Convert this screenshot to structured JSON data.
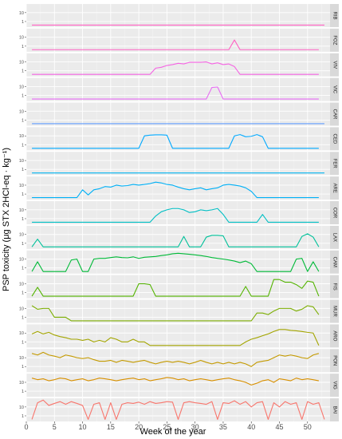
{
  "chart_data": {
    "type": "line",
    "facet": "rows",
    "xlabel": "Week of the year",
    "ylabel": "PSP toxicity (μg STX 2HCl-eq · kg⁻¹)",
    "xlim": [
      0,
      54
    ],
    "x_ticks": [
      0,
      5,
      10,
      15,
      20,
      25,
      30,
      35,
      40,
      45,
      50
    ],
    "y_scale": "log",
    "y_tick_labels": [
      "1",
      "10"
    ],
    "y_ticks": [
      1,
      10
    ],
    "y_min": 0.3,
    "y_max": 60,
    "grid": true,
    "series": [
      {
        "name": "RIB",
        "color": "#FF61C3",
        "x": [
          1,
          53
        ],
        "y": [
          0.4,
          0.4
        ]
      },
      {
        "name": "FOZ",
        "color": "#FF61C3",
        "x": [
          1,
          36,
          37,
          38,
          52
        ],
        "y": [
          0.4,
          0.4,
          5,
          0.4,
          0.4
        ]
      },
      {
        "name": "VIV",
        "color": "#F564E3",
        "x": [
          1,
          22,
          23,
          24,
          25,
          26,
          27,
          28,
          29,
          30,
          31,
          32,
          33,
          34,
          35,
          36,
          37,
          38,
          52
        ],
        "y": [
          0.4,
          0.4,
          2,
          2.5,
          4,
          5,
          7,
          6,
          9,
          9,
          9,
          10,
          6,
          8,
          5,
          6,
          3,
          0.4,
          0.4
        ]
      },
      {
        "name": "VIC",
        "color": "#E76BF3",
        "x": [
          1,
          32,
          33,
          34,
          35,
          52
        ],
        "y": [
          0.4,
          0.4,
          8,
          9,
          0.4,
          0.4
        ]
      },
      {
        "name": "CAR",
        "color": "#619CFF",
        "x": [
          1,
          53
        ],
        "y": [
          0.4,
          0.4
        ]
      },
      {
        "name": "CED",
        "color": "#00A9FF",
        "x": [
          1,
          20,
          21,
          22,
          23,
          24,
          25,
          26,
          36,
          37,
          38,
          39,
          40,
          41,
          42,
          43,
          52
        ],
        "y": [
          0.4,
          0.4,
          10,
          12,
          13,
          13,
          12,
          0.4,
          0.4,
          10,
          14,
          8,
          9,
          14,
          8,
          0.4,
          0.4
        ]
      },
      {
        "name": "FER",
        "color": "#00B4F0",
        "x": [
          1,
          53
        ],
        "y": [
          0.4,
          0.4
        ]
      },
      {
        "name": "ARE",
        "color": "#00B0F6",
        "x": [
          1,
          9,
          10,
          11,
          12,
          13,
          14,
          15,
          16,
          17,
          18,
          19,
          20,
          21,
          22,
          23,
          24,
          25,
          26,
          27,
          28,
          29,
          30,
          31,
          32,
          33,
          34,
          35,
          36,
          37,
          38,
          39,
          40,
          41,
          52
        ],
        "y": [
          0.4,
          0.4,
          3,
          0.8,
          3,
          4,
          7,
          6,
          10,
          8,
          9,
          12,
          10,
          12,
          15,
          22,
          18,
          12,
          10,
          6,
          4,
          3,
          4,
          5,
          3,
          4,
          5,
          10,
          12,
          10,
          8,
          5,
          2,
          0.4,
          0.4
        ]
      },
      {
        "name": "COR",
        "color": "#00BFC4",
        "x": [
          1,
          22,
          23,
          24,
          25,
          26,
          27,
          28,
          29,
          30,
          31,
          32,
          33,
          34,
          35,
          36,
          41,
          42,
          43,
          52
        ],
        "y": [
          0.4,
          0.4,
          2,
          6,
          10,
          14,
          14,
          10,
          5,
          6,
          10,
          8,
          10,
          14,
          3,
          0.4,
          0.4,
          3,
          0.4,
          0.4
        ]
      },
      {
        "name": "LAX",
        "color": "#00C19A",
        "x": [
          1,
          2,
          3,
          27,
          28,
          29,
          31,
          32,
          33,
          34,
          35,
          36,
          48,
          49,
          50,
          51,
          52
        ],
        "y": [
          0.4,
          3,
          0.4,
          0.4,
          6,
          0.4,
          0.4,
          5,
          8,
          8,
          7,
          0.4,
          0.4,
          6,
          12,
          5,
          0.4
        ]
      },
      {
        "name": "CAM",
        "color": "#00BA38",
        "x": [
          1,
          2,
          3,
          7,
          8,
          9,
          10,
          11,
          12,
          13,
          14,
          15,
          16,
          17,
          18,
          19,
          20,
          21,
          22,
          23,
          24,
          25,
          26,
          27,
          28,
          29,
          30,
          31,
          32,
          33,
          34,
          35,
          36,
          37,
          38,
          39,
          40,
          41,
          42,
          47,
          48,
          49,
          50,
          51,
          52
        ],
        "y": [
          0.4,
          5,
          0.4,
          0.4,
          8,
          10,
          0.4,
          0.4,
          10,
          12,
          12,
          15,
          18,
          15,
          14,
          18,
          12,
          16,
          18,
          20,
          25,
          30,
          40,
          45,
          40,
          35,
          30,
          25,
          20,
          15,
          12,
          10,
          8,
          6,
          4,
          6,
          3,
          0.4,
          0.4,
          0.4,
          10,
          12,
          0.4,
          5,
          0.4
        ]
      },
      {
        "name": "FIS",
        "color": "#53B400",
        "x": [
          1,
          2,
          3,
          19,
          20,
          21,
          22,
          23,
          38,
          39,
          40,
          43,
          44,
          45,
          46,
          47,
          48,
          49,
          50,
          51,
          52
        ],
        "y": [
          0.4,
          4,
          0.4,
          0.4,
          10,
          10,
          8,
          0.4,
          0.4,
          5,
          0.4,
          0.4,
          30,
          30,
          15,
          15,
          8,
          3,
          20,
          15,
          0.4
        ]
      },
      {
        "name": "MUR",
        "color": "#7CAE00",
        "x": [
          1,
          2,
          3,
          4,
          5,
          6,
          7,
          8,
          40,
          41,
          42,
          43,
          44,
          45,
          46,
          47,
          48,
          49,
          50,
          51,
          52
        ],
        "y": [
          20,
          8,
          10,
          10,
          1,
          1,
          1,
          0.4,
          0.4,
          3,
          3,
          2,
          5,
          10,
          10,
          10,
          5,
          8,
          20,
          15,
          2
        ]
      },
      {
        "name": "ARO",
        "color": "#A3A500",
        "x": [
          1,
          2,
          3,
          4,
          5,
          6,
          7,
          8,
          9,
          10,
          11,
          12,
          13,
          14,
          15,
          16,
          17,
          18,
          19,
          20,
          21,
          22,
          23,
          24,
          38,
          39,
          40,
          41,
          42,
          43,
          44,
          45,
          46,
          47,
          48,
          49,
          50,
          51,
          52
        ],
        "y": [
          8,
          15,
          8,
          12,
          6,
          4,
          3,
          2,
          2,
          1.5,
          2,
          1,
          1.5,
          1,
          3,
          2,
          1,
          1,
          2,
          1,
          1,
          0.4,
          0.4,
          0.4,
          0.4,
          1,
          2,
          3,
          5,
          8,
          15,
          25,
          25,
          20,
          18,
          15,
          12,
          10,
          0.4
        ]
      },
      {
        "name": "PON",
        "color": "#C49A00",
        "x": [
          1,
          2,
          3,
          4,
          5,
          6,
          7,
          8,
          9,
          10,
          11,
          12,
          13,
          14,
          15,
          16,
          17,
          18,
          19,
          20,
          21,
          22,
          23,
          24,
          25,
          26,
          27,
          28,
          29,
          30,
          31,
          32,
          33,
          34,
          35,
          36,
          37,
          38,
          39,
          40,
          41,
          42,
          43,
          44,
          45,
          46,
          47,
          48,
          49,
          50,
          51,
          52
        ],
        "y": [
          30,
          20,
          40,
          20,
          15,
          10,
          20,
          15,
          10,
          8,
          10,
          6,
          4,
          4,
          5,
          3,
          5,
          4,
          3,
          4,
          5,
          3,
          2,
          3,
          4,
          3,
          4,
          3,
          2,
          3,
          5,
          3,
          2,
          3,
          2,
          3,
          2,
          3,
          2,
          1,
          3,
          4,
          5,
          10,
          20,
          15,
          20,
          15,
          10,
          8,
          20,
          30
        ]
      },
      {
        "name": "VIG",
        "color": "#D89000",
        "x": [
          1,
          2,
          3,
          4,
          5,
          6,
          7,
          8,
          9,
          10,
          11,
          12,
          13,
          14,
          15,
          16,
          17,
          18,
          19,
          20,
          21,
          22,
          23,
          24,
          25,
          26,
          27,
          28,
          29,
          30,
          31,
          32,
          33,
          34,
          35,
          36,
          37,
          38,
          39,
          40,
          41,
          42,
          43,
          44,
          45,
          46,
          47,
          48,
          49,
          50,
          51,
          52
        ],
        "y": [
          30,
          20,
          25,
          15,
          20,
          30,
          25,
          15,
          20,
          25,
          15,
          20,
          30,
          25,
          20,
          15,
          20,
          25,
          30,
          20,
          25,
          15,
          20,
          25,
          35,
          30,
          20,
          25,
          15,
          20,
          25,
          20,
          15,
          20,
          25,
          30,
          20,
          15,
          10,
          5,
          8,
          15,
          20,
          10,
          25,
          20,
          15,
          30,
          20,
          25,
          20,
          15
        ]
      },
      {
        "name": "BAI",
        "color": "#F8766D",
        "x": [
          1,
          2,
          3,
          4,
          5,
          6,
          7,
          8,
          9,
          10,
          11,
          12,
          13,
          14,
          15,
          16,
          17,
          18,
          19,
          20,
          21,
          22,
          23,
          24,
          25,
          26,
          27,
          28,
          29,
          30,
          31,
          32,
          33,
          34,
          35,
          36,
          37,
          38,
          39,
          40,
          41,
          42,
          43,
          44,
          45,
          46,
          47,
          48,
          49,
          50,
          51,
          52,
          53
        ],
        "y": [
          0.4,
          30,
          60,
          15,
          25,
          40,
          20,
          40,
          25,
          15,
          0.4,
          20,
          30,
          0.4,
          30,
          0.4,
          20,
          30,
          25,
          35,
          20,
          40,
          25,
          30,
          40,
          35,
          0.4,
          30,
          40,
          30,
          25,
          20,
          40,
          0.4,
          30,
          25,
          50,
          20,
          40,
          10,
          30,
          40,
          0.4,
          30,
          10,
          40,
          20,
          30,
          0.4,
          40,
          20,
          30,
          0.4
        ]
      }
    ]
  }
}
